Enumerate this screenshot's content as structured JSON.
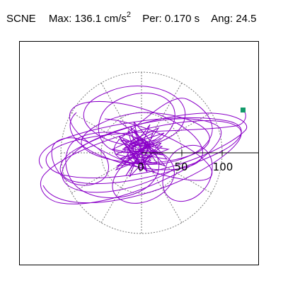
{
  "header": {
    "station": "SCNE",
    "max_label": "Max:",
    "max_value": "136.1 cm/s",
    "max_unit_sup": "2",
    "per_label": "Per:",
    "per_value": "0.170 s",
    "ang_label": "Ang:",
    "ang_value": "24.5"
  },
  "plot": {
    "tick_labels": [
      "0",
      "50",
      "100"
    ],
    "colors": {
      "trace": "#8a00c8",
      "marker": "#129a6a",
      "grid": "#7a7a7a",
      "axis": "#000000",
      "frame": "#000000"
    }
  }
}
